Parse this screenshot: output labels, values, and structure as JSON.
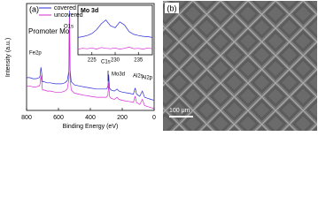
{
  "chart_data": [
    {
      "type": "line",
      "panel_label": "(a)",
      "xlabel": "Binding Energy (eV)",
      "ylabel": "Intensity (a.u.)",
      "x": [
        800,
        780,
        760,
        740,
        720,
        715,
        710,
        705,
        700,
        690,
        670,
        650,
        620,
        600,
        580,
        560,
        545,
        535,
        531,
        527,
        520,
        500,
        470,
        440,
        400,
        360,
        320,
        300,
        290,
        285,
        280,
        270,
        250,
        232,
        228,
        220,
        200,
        160,
        130,
        119,
        110,
        90,
        74,
        60,
        40,
        20,
        0
      ],
      "series": [
        {
          "name": "covered",
          "color": "#2b2bd9",
          "values": [
            30,
            30,
            29,
            29,
            30,
            32,
            40,
            34,
            26,
            26,
            25,
            25,
            24,
            24,
            24,
            25,
            27,
            36,
            95,
            38,
            26,
            23,
            22,
            21,
            20,
            19,
            19,
            19,
            21,
            33,
            20,
            18,
            17,
            19,
            18,
            17,
            16,
            15,
            14,
            20,
            14,
            12,
            17,
            11,
            10,
            9,
            8
          ]
        },
        {
          "name": "uncovered",
          "color": "#d62bd6",
          "values": [
            22,
            22,
            21,
            21,
            22,
            24,
            32,
            26,
            18,
            18,
            17,
            17,
            16,
            16,
            16,
            17,
            19,
            28,
            88,
            30,
            18,
            15,
            14,
            13,
            12,
            11,
            11,
            11,
            13,
            25,
            12,
            10,
            9,
            11,
            10,
            9,
            8,
            7,
            6,
            12,
            6,
            4,
            9,
            3,
            2,
            1,
            0
          ]
        }
      ],
      "xlim": [
        800,
        0
      ],
      "xticks": [
        800,
        600,
        400,
        200,
        0
      ],
      "ylim": [
        0,
        100
      ],
      "annotations": [
        "Promoter Mo",
        "Fe2p",
        "O1s",
        "C1s",
        "Mo3d",
        "Al2s",
        "Al2p"
      ]
    },
    {
      "type": "line",
      "title": "Mo 3d",
      "x": [
        222,
        223,
        224,
        225,
        226,
        227,
        228,
        229,
        230,
        231,
        232,
        233,
        234,
        235,
        236,
        237,
        238
      ],
      "series": [
        {
          "name": "covered",
          "color": "#2b2bd9",
          "values": [
            40,
            42,
            45,
            50,
            60,
            75,
            85,
            70,
            65,
            80,
            72,
            55,
            48,
            45,
            43,
            42,
            40
          ]
        },
        {
          "name": "uncovered",
          "color": "#d62bd6",
          "values": [
            10,
            12,
            11,
            13,
            10,
            14,
            12,
            11,
            13,
            10,
            12,
            15,
            11,
            12,
            10,
            13,
            11
          ]
        }
      ],
      "xlim": [
        222,
        238
      ],
      "xticks": [
        225,
        230,
        235
      ],
      "ylim": [
        0,
        100
      ]
    }
  ],
  "image_panel": {
    "label": "(b)",
    "scale_bar": "100 μm"
  }
}
